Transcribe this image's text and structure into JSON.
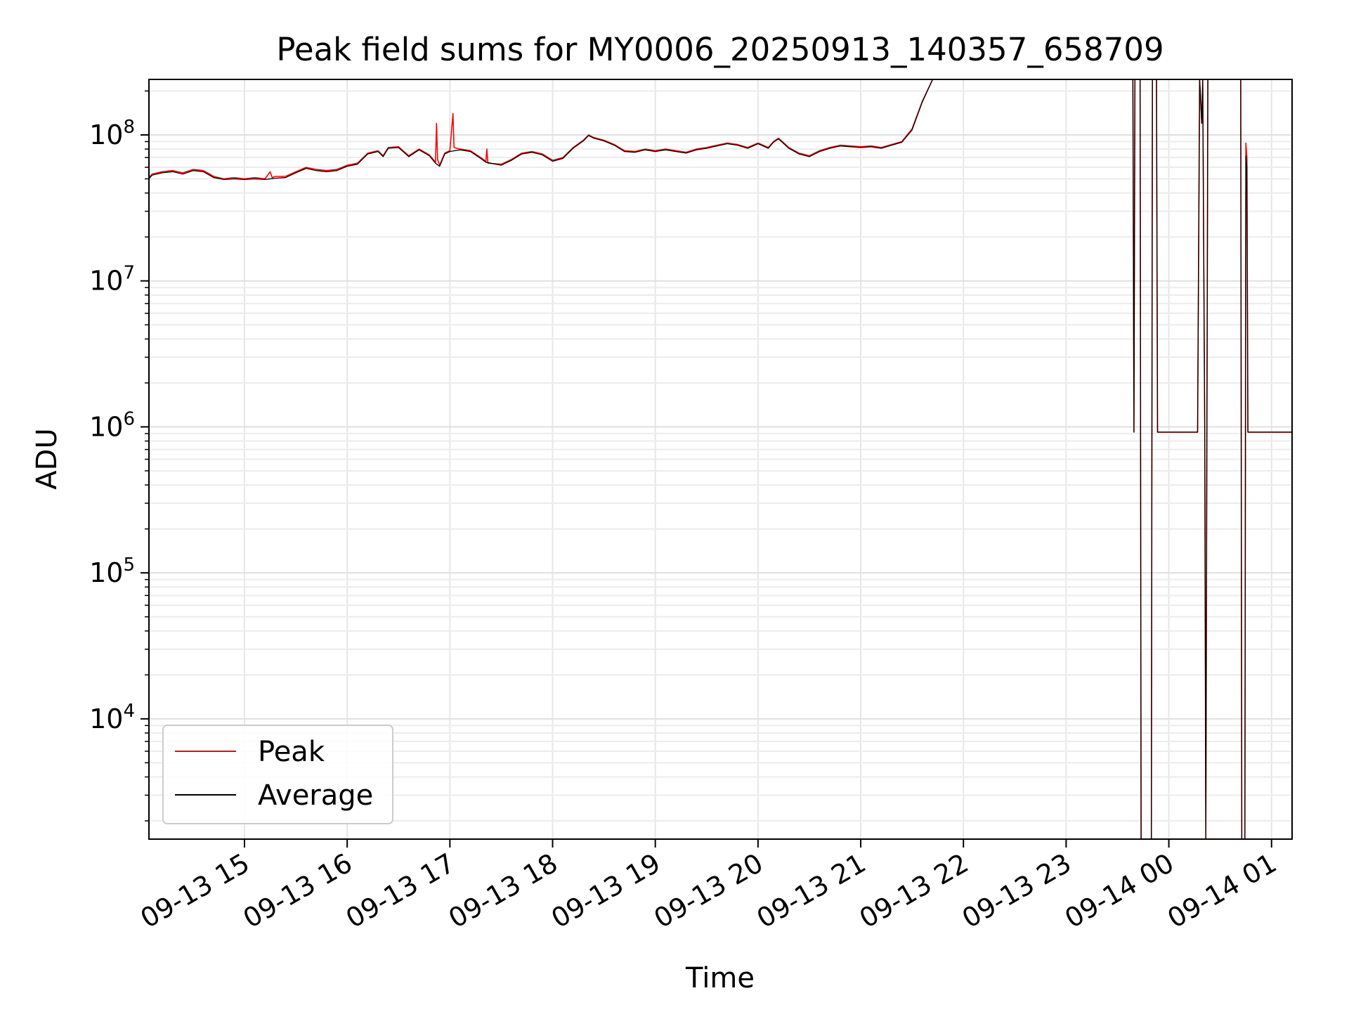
{
  "chart_data": {
    "type": "line",
    "title": "Peak field sums for MY0006_20250913_140357_658709",
    "xlabel": "Time",
    "ylabel": "ADU",
    "yscale": "log",
    "ylim": [
      1500,
      240000000
    ],
    "xlim_hours": [
      14.07,
      25.2
    ],
    "grid": true,
    "legend_position": "lower-left",
    "x_tick_labels": [
      "09-13 15",
      "09-13 16",
      "09-13 17",
      "09-13 18",
      "09-13 19",
      "09-13 20",
      "09-13 21",
      "09-13 22",
      "09-13 23",
      "09-14 00",
      "09-14 01"
    ],
    "x_tick_hours": [
      15,
      16,
      17,
      18,
      19,
      20,
      21,
      22,
      23,
      24,
      25
    ],
    "y_tick_exponents": [
      "4",
      "5",
      "6",
      "7",
      "8"
    ],
    "y_tick_base": "10",
    "colors": {
      "peak": "#ff0000",
      "average": "#000000"
    },
    "series": [
      {
        "name": "Peak",
        "color": "#ff0000",
        "points": [
          [
            14.07,
            51000000
          ],
          [
            14.1,
            54000000
          ],
          [
            14.2,
            56000000
          ],
          [
            14.3,
            57000000
          ],
          [
            14.4,
            55000000
          ],
          [
            14.5,
            58000000
          ],
          [
            14.6,
            57000000
          ],
          [
            14.7,
            52000000
          ],
          [
            14.8,
            50000000
          ],
          [
            14.9,
            51000000
          ],
          [
            15.0,
            50000000
          ],
          [
            15.1,
            51000000
          ],
          [
            15.2,
            50000000
          ],
          [
            15.25,
            56000000
          ],
          [
            15.27,
            51000000
          ],
          [
            15.3,
            52000000
          ],
          [
            15.4,
            52000000
          ],
          [
            15.5,
            56000000
          ],
          [
            15.6,
            60000000
          ],
          [
            15.7,
            58000000
          ],
          [
            15.8,
            57000000
          ],
          [
            15.9,
            58000000
          ],
          [
            16.0,
            62000000
          ],
          [
            16.1,
            64000000
          ],
          [
            16.2,
            75000000
          ],
          [
            16.3,
            78000000
          ],
          [
            16.35,
            72000000
          ],
          [
            16.4,
            82000000
          ],
          [
            16.5,
            83000000
          ],
          [
            16.6,
            72000000
          ],
          [
            16.7,
            80000000
          ],
          [
            16.8,
            73000000
          ],
          [
            16.86,
            65000000
          ],
          [
            16.87,
            120000000
          ],
          [
            16.88,
            68000000
          ],
          [
            16.9,
            62000000
          ],
          [
            16.95,
            75000000
          ],
          [
            17.0,
            78000000
          ],
          [
            17.03,
            140000000
          ],
          [
            17.04,
            82000000
          ],
          [
            17.1,
            80000000
          ],
          [
            17.2,
            78000000
          ],
          [
            17.3,
            70000000
          ],
          [
            17.35,
            66000000
          ],
          [
            17.36,
            80000000
          ],
          [
            17.37,
            64000000
          ],
          [
            17.5,
            63000000
          ],
          [
            17.6,
            68000000
          ],
          [
            17.7,
            75000000
          ],
          [
            17.8,
            77000000
          ],
          [
            17.9,
            74000000
          ],
          [
            18.0,
            67000000
          ],
          [
            18.1,
            70000000
          ],
          [
            18.2,
            82000000
          ],
          [
            18.3,
            92000000
          ],
          [
            18.35,
            100000000
          ],
          [
            18.4,
            96000000
          ],
          [
            18.5,
            92000000
          ],
          [
            18.6,
            86000000
          ],
          [
            18.7,
            78000000
          ],
          [
            18.8,
            77000000
          ],
          [
            18.9,
            80000000
          ],
          [
            19.0,
            78000000
          ],
          [
            19.1,
            80000000
          ],
          [
            19.2,
            78000000
          ],
          [
            19.3,
            76000000
          ],
          [
            19.4,
            80000000
          ],
          [
            19.5,
            82000000
          ],
          [
            19.6,
            85000000
          ],
          [
            19.7,
            88000000
          ],
          [
            19.8,
            86000000
          ],
          [
            19.9,
            82000000
          ],
          [
            20.0,
            88000000
          ],
          [
            20.1,
            82000000
          ],
          [
            20.15,
            90000000
          ],
          [
            20.2,
            95000000
          ],
          [
            20.3,
            82000000
          ],
          [
            20.4,
            75000000
          ],
          [
            20.5,
            72000000
          ],
          [
            20.6,
            78000000
          ],
          [
            20.7,
            82000000
          ],
          [
            20.8,
            85000000
          ],
          [
            20.9,
            84000000
          ],
          [
            21.0,
            83000000
          ],
          [
            21.1,
            84000000
          ],
          [
            21.2,
            82000000
          ],
          [
            21.3,
            86000000
          ],
          [
            21.4,
            90000000
          ],
          [
            21.5,
            110000000
          ],
          [
            21.6,
            170000000
          ],
          [
            21.7,
            240000000
          ],
          [
            23.65,
            240000000
          ],
          [
            23.66,
            920000
          ],
          [
            23.67,
            240000000
          ],
          [
            23.72,
            240000000
          ],
          [
            23.73,
            1500
          ],
          [
            23.83,
            1500
          ],
          [
            23.84,
            240000000
          ],
          [
            23.88,
            240000000
          ],
          [
            23.89,
            920000
          ],
          [
            24.28,
            920000
          ],
          [
            24.3,
            240000000
          ],
          [
            24.32,
            120000000
          ],
          [
            24.33,
            240000000
          ],
          [
            24.35,
            920000
          ],
          [
            24.36,
            1500
          ],
          [
            24.38,
            240000000
          ],
          [
            24.7,
            240000000
          ],
          [
            24.71,
            1500
          ],
          [
            24.74,
            1500
          ],
          [
            24.75,
            88000000
          ],
          [
            24.76,
            70000000
          ],
          [
            24.77,
            920000
          ],
          [
            25.2,
            920000
          ]
        ]
      },
      {
        "name": "Average",
        "color": "#000000",
        "points": [
          [
            14.07,
            50000000
          ],
          [
            14.1,
            53000000
          ],
          [
            14.2,
            55000000
          ],
          [
            14.3,
            56000000
          ],
          [
            14.4,
            54000000
          ],
          [
            14.5,
            57000000
          ],
          [
            14.6,
            56000000
          ],
          [
            14.7,
            51000000
          ],
          [
            14.8,
            49500000
          ],
          [
            14.9,
            50000000
          ],
          [
            15.0,
            49500000
          ],
          [
            15.1,
            50000000
          ],
          [
            15.2,
            49500000
          ],
          [
            15.3,
            50500000
          ],
          [
            15.4,
            51000000
          ],
          [
            15.5,
            55000000
          ],
          [
            15.6,
            59000000
          ],
          [
            15.7,
            57000000
          ],
          [
            15.8,
            56000000
          ],
          [
            15.9,
            57000000
          ],
          [
            16.0,
            61000000
          ],
          [
            16.1,
            63000000
          ],
          [
            16.2,
            74000000
          ],
          [
            16.3,
            77000000
          ],
          [
            16.35,
            71000000
          ],
          [
            16.4,
            81000000
          ],
          [
            16.5,
            82000000
          ],
          [
            16.6,
            71000000
          ],
          [
            16.7,
            79000000
          ],
          [
            16.8,
            72000000
          ],
          [
            16.86,
            64000000
          ],
          [
            16.9,
            61000000
          ],
          [
            16.95,
            74000000
          ],
          [
            17.0,
            77000000
          ],
          [
            17.1,
            79000000
          ],
          [
            17.2,
            77000000
          ],
          [
            17.3,
            69000000
          ],
          [
            17.35,
            65000000
          ],
          [
            17.5,
            62000000
          ],
          [
            17.6,
            67000000
          ],
          [
            17.7,
            74000000
          ],
          [
            17.8,
            76000000
          ],
          [
            17.9,
            73000000
          ],
          [
            18.0,
            66000000
          ],
          [
            18.1,
            69000000
          ],
          [
            18.2,
            81000000
          ],
          [
            18.3,
            91000000
          ],
          [
            18.35,
            99000000
          ],
          [
            18.4,
            95000000
          ],
          [
            18.5,
            91000000
          ],
          [
            18.6,
            85000000
          ],
          [
            18.7,
            77000000
          ],
          [
            18.8,
            76000000
          ],
          [
            18.9,
            79000000
          ],
          [
            19.0,
            77000000
          ],
          [
            19.1,
            79000000
          ],
          [
            19.2,
            77000000
          ],
          [
            19.3,
            75000000
          ],
          [
            19.4,
            79000000
          ],
          [
            19.5,
            81000000
          ],
          [
            19.6,
            84000000
          ],
          [
            19.7,
            87000000
          ],
          [
            19.8,
            85000000
          ],
          [
            19.9,
            81000000
          ],
          [
            20.0,
            87000000
          ],
          [
            20.1,
            81000000
          ],
          [
            20.15,
            89000000
          ],
          [
            20.2,
            94000000
          ],
          [
            20.3,
            81000000
          ],
          [
            20.4,
            74000000
          ],
          [
            20.5,
            71000000
          ],
          [
            20.6,
            77000000
          ],
          [
            20.7,
            81000000
          ],
          [
            20.8,
            84000000
          ],
          [
            20.9,
            83000000
          ],
          [
            21.0,
            82000000
          ],
          [
            21.1,
            83000000
          ],
          [
            21.2,
            81000000
          ],
          [
            21.3,
            85000000
          ],
          [
            21.4,
            89000000
          ],
          [
            21.5,
            108000000
          ],
          [
            21.6,
            168000000
          ],
          [
            21.7,
            240000000
          ],
          [
            23.65,
            240000000
          ],
          [
            23.66,
            920000
          ],
          [
            23.67,
            240000000
          ],
          [
            23.72,
            240000000
          ],
          [
            23.73,
            1500
          ],
          [
            23.83,
            1500
          ],
          [
            23.84,
            240000000
          ],
          [
            23.88,
            240000000
          ],
          [
            23.89,
            920000
          ],
          [
            24.28,
            920000
          ],
          [
            24.3,
            240000000
          ],
          [
            24.32,
            120000000
          ],
          [
            24.33,
            240000000
          ],
          [
            24.35,
            920000
          ],
          [
            24.36,
            1500
          ],
          [
            24.38,
            240000000
          ],
          [
            24.7,
            240000000
          ],
          [
            24.71,
            1500
          ],
          [
            24.74,
            1500
          ],
          [
            24.75,
            72000000
          ],
          [
            24.76,
            60000000
          ],
          [
            24.77,
            920000
          ],
          [
            25.2,
            920000
          ]
        ]
      }
    ]
  }
}
